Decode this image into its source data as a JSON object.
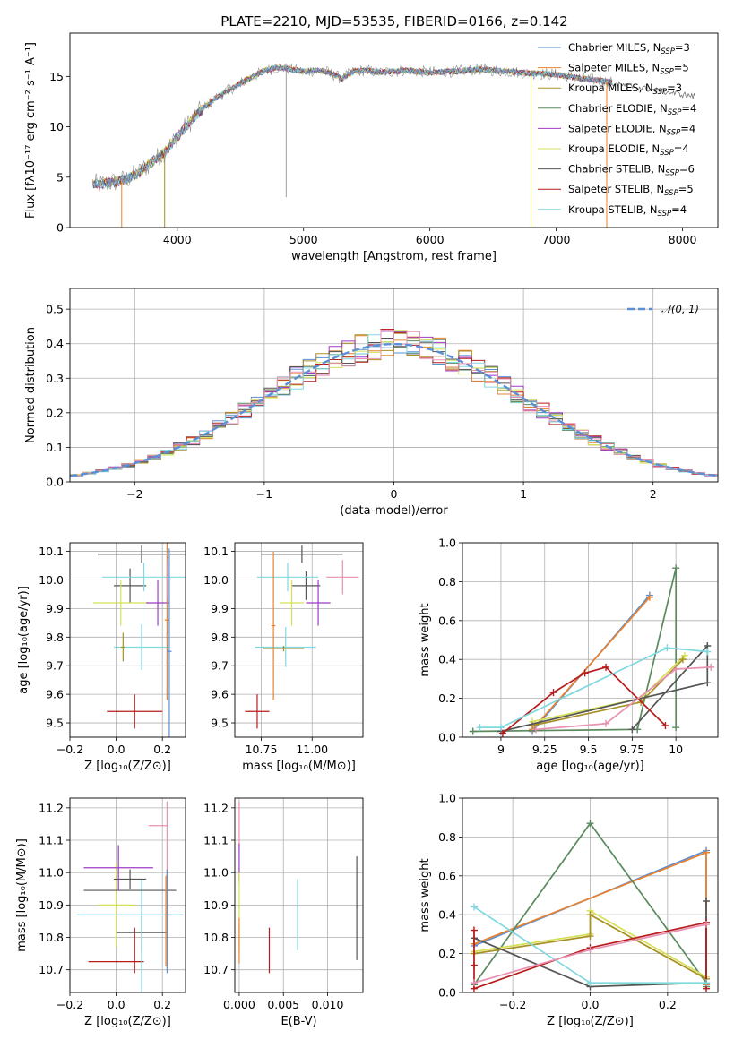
{
  "figure": {
    "title": "PLATE=2210, MJD=53535, FIBERID=0166, z=0.142"
  },
  "colors": {
    "blue": "#5b8fd6",
    "orange": "#e8822f",
    "olive": "#a89025",
    "green": "#5a8a5e",
    "purple": "#9d3bc4",
    "yellow": "#d4e157",
    "darkgray": "#555555",
    "red": "#b71c1c",
    "cyan": "#80d8e0",
    "pink": "#e890b0",
    "gray": "#888888"
  },
  "chart_data": [
    {
      "id": "spectrum",
      "type": "line",
      "xlabel": "wavelength [Angstrom, rest frame]",
      "ylabel": "Flux [fλ10⁻¹⁷ erg cm⁻² s⁻¹ A⁻¹]",
      "xlim": [
        3150,
        8280
      ],
      "ylim": [
        0,
        19.3
      ],
      "xticks": [
        4000,
        5000,
        6000,
        7000,
        8000
      ],
      "yticks": [
        0,
        5,
        10,
        15
      ],
      "grid": false,
      "legend_position": "top-right",
      "legend": [
        {
          "label": "Chabrier MILES, N",
          "sub": "SSP",
          "tail": "=3",
          "color": "#5b8fd6"
        },
        {
          "label": "Salpeter MILES, N",
          "sub": "SSP",
          "tail": "=5",
          "color": "#e8822f"
        },
        {
          "label": "Kroupa MILES, N",
          "sub": "SSP",
          "tail": "=3",
          "color": "#a89025"
        },
        {
          "label": "Chabrier ELODIE, N",
          "sub": "SSP",
          "tail": "=4",
          "color": "#5a8a5e"
        },
        {
          "label": "Salpeter ELODIE, N",
          "sub": "SSP",
          "tail": "=4",
          "color": "#9d3bc4"
        },
        {
          "label": "Kroupa ELODIE, N",
          "sub": "SSP",
          "tail": "=4",
          "color": "#d4e157"
        },
        {
          "label": "Chabrier STELIB, N",
          "sub": "SSP",
          "tail": "=6",
          "color": "#555555"
        },
        {
          "label": "Salpeter STELIB, N",
          "sub": "SSP",
          "tail": "=5",
          "color": "#b71c1c"
        },
        {
          "label": "Kroupa STELIB, N",
          "sub": "SSP",
          "tail": "=4",
          "color": "#80d8e0"
        }
      ],
      "continuum": {
        "wavelength": [
          3330,
          3400,
          3500,
          3600,
          3700,
          3800,
          3900,
          4000,
          4100,
          4200,
          4300,
          4400,
          4500,
          4600,
          4700,
          4800,
          4900,
          5000,
          5100,
          5200,
          5300,
          5400,
          5500,
          5600,
          5700,
          5800,
          5900,
          6000,
          6200,
          6400,
          6600,
          6800,
          7000,
          7200,
          7400
        ],
        "flux": [
          4.3,
          4.3,
          4.5,
          4.8,
          5.5,
          6.5,
          7.5,
          9.0,
          10.5,
          11.8,
          12.8,
          13.6,
          14.3,
          15.0,
          15.6,
          15.9,
          15.7,
          15.5,
          15.6,
          15.4,
          14.8,
          15.5,
          15.6,
          15.4,
          15.5,
          15.6,
          15.5,
          15.4,
          15.5,
          15.7,
          15.5,
          15.3,
          15.2,
          14.8,
          14.5
        ]
      },
      "stelib_continuum": {
        "wavelength": [
          7300,
          7500,
          7700,
          7900,
          8000,
          8100
        ],
        "flux": [
          14.6,
          14.3,
          14.0,
          13.6,
          13.3,
          13.0
        ]
      },
      "vertical_drops": [
        {
          "x": 3560,
          "color": "#e8822f"
        },
        {
          "x": 3900,
          "color": "#a89025"
        },
        {
          "x": 6800,
          "color": "#d4e157"
        },
        {
          "x": 7400,
          "color": "#e8822f"
        }
      ]
    },
    {
      "id": "residual-hist",
      "type": "line",
      "xlabel": "(data-model)/error",
      "ylabel": "Normed distribution",
      "xlim": [
        -2.5,
        2.5
      ],
      "ylim": [
        0,
        0.56
      ],
      "xticks": [
        -2,
        -1,
        0,
        1,
        2
      ],
      "yticks": [
        0.0,
        0.1,
        0.2,
        0.3,
        0.4,
        0.5
      ],
      "grid": true,
      "legend_position": "top-right",
      "legend": [
        {
          "label": "𝒩(0, 1)",
          "color": "#5b8fd6"
        }
      ],
      "bin_edges_start": -2.5,
      "bin_width": 0.1
    },
    {
      "id": "age-vs-Z",
      "type": "scatter",
      "xlabel": "Z [log₁₀(Z/Z⊙)]",
      "ylabel": "age  [log₁₀(age/yr)]",
      "xlim": [
        -0.2,
        0.3
      ],
      "ylim": [
        9.45,
        10.13
      ],
      "xticks": [
        -0.2,
        0.0,
        0.2
      ],
      "xtick_labels": [
        "−0.2",
        "0.0",
        "0.2"
      ],
      "yticks": [
        9.5,
        9.6,
        9.7,
        9.8,
        9.9,
        10.0,
        10.1
      ],
      "grid": true,
      "errorbars": [
        {
          "x": 0.08,
          "y": 9.54,
          "xerr": 0.12,
          "yerr": 0.06,
          "color": "#b71c1c"
        },
        {
          "x": 0.11,
          "y": 9.765,
          "xerr": 0.12,
          "yerr": 0.08,
          "color": "#80d8e0"
        },
        {
          "x": 0.06,
          "y": 9.98,
          "xerr": 0.07,
          "yerr": 0.06,
          "color": "#555555"
        },
        {
          "x": 0.02,
          "y": 9.92,
          "xerr": 0.12,
          "yerr": 0.08,
          "color": "#d4e157"
        },
        {
          "x": 0.18,
          "y": 9.92,
          "xerr": 0.05,
          "yerr": 0.08,
          "color": "#9d3bc4"
        },
        {
          "x": 0.11,
          "y": 10.09,
          "xerr": 0.19,
          "yerr": 0.03,
          "color": "#555555"
        },
        {
          "x": 0.12,
          "y": 10.01,
          "xerr": 0.18,
          "yerr": 0.05,
          "color": "#80d8e0"
        },
        {
          "x": 0.22,
          "y": 9.86,
          "xerr": 0.01,
          "yerr": 0.28,
          "color": "#e8822f"
        },
        {
          "x": 0.23,
          "y": 9.75,
          "xerr": 0.01,
          "yerr": 0.36,
          "color": "#5b8fd6"
        },
        {
          "x": 0.22,
          "y": 10.0,
          "xerr": 0.005,
          "yerr": 0.07,
          "color": "#e890b0"
        },
        {
          "x": 0.03,
          "y": 9.765,
          "xerr": 0.01,
          "yerr": 0.05,
          "color": "#a89025"
        }
      ]
    },
    {
      "id": "age-vs-mass",
      "type": "scatter",
      "xlabel": "mass [log₁₀(M/M⊙)]",
      "xlim": [
        10.62,
        11.25
      ],
      "ylim": [
        9.45,
        10.13
      ],
      "xticks": [
        10.75,
        11.0
      ],
      "xtick_labels": [
        "10.75",
        "11.00"
      ],
      "yticks": [
        9.5,
        9.6,
        9.7,
        9.8,
        9.9,
        10.0,
        10.1
      ],
      "grid": true,
      "errorbars": [
        {
          "x": 10.73,
          "y": 9.54,
          "xerr": 0.06,
          "yerr": 0.06,
          "color": "#b71c1c"
        },
        {
          "x": 10.87,
          "y": 9.765,
          "xerr": 0.15,
          "yerr": 0.07,
          "color": "#80d8e0"
        },
        {
          "x": 10.97,
          "y": 9.98,
          "xerr": 0.07,
          "yerr": 0.05,
          "color": "#555555"
        },
        {
          "x": 10.9,
          "y": 9.92,
          "xerr": 0.06,
          "yerr": 0.08,
          "color": "#d4e157"
        },
        {
          "x": 11.03,
          "y": 9.92,
          "xerr": 0.06,
          "yerr": 0.08,
          "color": "#9d3bc4"
        },
        {
          "x": 10.95,
          "y": 10.09,
          "xerr": 0.2,
          "yerr": 0.03,
          "color": "#555555"
        },
        {
          "x": 10.88,
          "y": 10.01,
          "xerr": 0.15,
          "yerr": 0.05,
          "color": "#80d8e0"
        },
        {
          "x": 10.81,
          "y": 9.84,
          "xerr": 0.01,
          "yerr": 0.26,
          "color": "#e8822f"
        },
        {
          "x": 11.15,
          "y": 10.01,
          "xerr": 0.08,
          "yerr": 0.06,
          "color": "#e890b0"
        },
        {
          "x": 10.86,
          "y": 9.76,
          "xerr": 0.1,
          "yerr": 0.01,
          "color": "#a89025"
        }
      ]
    },
    {
      "id": "weight-vs-age",
      "type": "line",
      "xlabel": "age  [log₁₀(age/yr)]",
      "ylabel": "mass weight",
      "xlim": [
        8.78,
        10.24
      ],
      "ylim": [
        0,
        1.0
      ],
      "xticks": [
        9.0,
        9.25,
        9.5,
        9.75,
        10.0
      ],
      "yticks": [
        0.0,
        0.2,
        0.4,
        0.6,
        0.8,
        1.0
      ],
      "grid": true,
      "series": [
        {
          "color": "#5b8fd6",
          "x": [
            9.18,
            9.85
          ],
          "y": [
            0.03,
            0.73
          ]
        },
        {
          "color": "#e8822f",
          "x": [
            9.18,
            9.85
          ],
          "y": [
            0.04,
            0.72
          ]
        },
        {
          "color": "#5a8a5e",
          "x": [
            8.84,
            9.78,
            10.0,
            10.0
          ],
          "y": [
            0.03,
            0.04,
            0.87,
            0.05
          ]
        },
        {
          "color": "#d4e157",
          "x": [
            9.18,
            9.8,
            10.05
          ],
          "y": [
            0.08,
            0.2,
            0.42
          ]
        },
        {
          "color": "#a89025",
          "x": [
            9.18,
            9.8,
            10.04
          ],
          "y": [
            0.06,
            0.18,
            0.4
          ]
        },
        {
          "color": "#555555",
          "x": [
            9.0,
            10.18,
            10.18,
            9.75
          ],
          "y": [
            0.03,
            0.28,
            0.47,
            0.04
          ]
        },
        {
          "color": "#b71c1c",
          "x": [
            9.01,
            9.3,
            9.48,
            9.6,
            9.94
          ],
          "y": [
            0.02,
            0.23,
            0.33,
            0.36,
            0.06
          ]
        },
        {
          "color": "#80d8e0",
          "x": [
            8.88,
            9.0,
            9.95,
            10.18
          ],
          "y": [
            0.05,
            0.05,
            0.46,
            0.44
          ]
        },
        {
          "color": "#e890b0",
          "x": [
            9.2,
            9.6,
            10.0,
            10.2
          ],
          "y": [
            0.04,
            0.07,
            0.35,
            0.36
          ]
        }
      ]
    },
    {
      "id": "mass-vs-Z",
      "type": "scatter",
      "xlabel": "Z [log₁₀(Z/Z⊙)]",
      "ylabel": "mass [log₁₀(M/M⊙)]",
      "xlim": [
        -0.2,
        0.3
      ],
      "ylim": [
        10.63,
        11.23
      ],
      "xticks": [
        -0.2,
        0.0,
        0.2
      ],
      "xtick_labels": [
        "−0.2",
        "0.0",
        "0.2"
      ],
      "yticks": [
        10.7,
        10.8,
        10.9,
        11.0,
        11.1,
        11.2
      ],
      "grid": true,
      "errorbars": [
        {
          "x": 0.0,
          "y": 10.725,
          "xerr": 0.12,
          "yerr": 0.0,
          "color": "#b71c1c"
        },
        {
          "x": 0.08,
          "y": 10.76,
          "xerr": 0.0,
          "yerr": 0.07,
          "color": "#b71c1c"
        },
        {
          "x": 0.11,
          "y": 10.815,
          "xerr": 0.11,
          "yerr": 0.0,
          "color": "#555555"
        },
        {
          "x": 0.11,
          "y": 10.815,
          "xerr": 0.0,
          "yerr": 0.06,
          "color": "#a89025"
        },
        {
          "x": 0.06,
          "y": 10.87,
          "xerr": 0.23,
          "yerr": 0.0,
          "color": "#80d8e0"
        },
        {
          "x": 0.11,
          "y": 10.8,
          "xerr": 0.0,
          "yerr": 0.18,
          "color": "#80d8e0"
        },
        {
          "x": 0.0,
          "y": 10.9,
          "xerr": 0.08,
          "yerr": 0.13,
          "color": "#d4e157"
        },
        {
          "x": 0.06,
          "y": 10.945,
          "xerr": 0.2,
          "yerr": 0.0,
          "color": "#555555"
        },
        {
          "x": 0.06,
          "y": 10.98,
          "xerr": 0.07,
          "yerr": 0.03,
          "color": "#555555"
        },
        {
          "x": 0.01,
          "y": 11.015,
          "xerr": 0.15,
          "yerr": 0.07,
          "color": "#9d3bc4"
        },
        {
          "x": 0.18,
          "y": 11.145,
          "xerr": 0.04,
          "yerr": 0.0,
          "color": "#e890b0"
        },
        {
          "x": 0.22,
          "y": 11.08,
          "xerr": 0.0,
          "yerr": 0.14,
          "color": "#e890b0"
        },
        {
          "x": 0.22,
          "y": 10.85,
          "xerr": 0.0,
          "yerr": 0.16,
          "color": "#5b8fd6"
        },
        {
          "x": 0.215,
          "y": 10.85,
          "xerr": 0.0,
          "yerr": 0.14,
          "color": "#e8822f"
        }
      ]
    },
    {
      "id": "mass-vs-EBV",
      "type": "scatter",
      "xlabel": "E(B-V)",
      "xlim": [
        -0.0005,
        0.014
      ],
      "ylim": [
        10.63,
        11.23
      ],
      "xticks": [
        0.0,
        0.005,
        0.01
      ],
      "xtick_labels": [
        "0.000",
        "0.005",
        "0.010"
      ],
      "yticks": [
        10.7,
        10.8,
        10.9,
        11.0,
        11.1,
        11.2
      ],
      "grid": true,
      "errorbars": [
        {
          "x": 0.0,
          "y": 11.15,
          "xerr": 0.0,
          "yerr": 0.07,
          "color": "#e890b0"
        },
        {
          "x": 0.0,
          "y": 11.03,
          "xerr": 0.0,
          "yerr": 0.06,
          "color": "#9d3bc4"
        },
        {
          "x": 0.0,
          "y": 10.88,
          "xerr": 0.0,
          "yerr": 0.12,
          "color": "#d4e157"
        },
        {
          "x": 0.0,
          "y": 10.79,
          "xerr": 0.0,
          "yerr": 0.07,
          "color": "#e8822f"
        },
        {
          "x": 0.0034,
          "y": 10.76,
          "xerr": 0.0,
          "yerr": 0.07,
          "color": "#b71c1c"
        },
        {
          "x": 0.0066,
          "y": 10.87,
          "xerr": 0.0,
          "yerr": 0.11,
          "color": "#80d8e0"
        },
        {
          "x": 0.0133,
          "y": 10.89,
          "xerr": 0.0,
          "yerr": 0.16,
          "color": "#555555"
        }
      ]
    },
    {
      "id": "weight-vs-Z",
      "type": "line",
      "xlabel": "Z [log₁₀(Z/Z⊙)]",
      "ylabel": "mass weight",
      "xlim": [
        -0.33,
        0.33
      ],
      "ylim": [
        0,
        1.0
      ],
      "xticks": [
        -0.2,
        0.0,
        0.2
      ],
      "xtick_labels": [
        "−0.2",
        "0.0",
        "0.2"
      ],
      "yticks": [
        0.0,
        0.2,
        0.4,
        0.6,
        0.8,
        1.0
      ],
      "grid": true,
      "series": [
        {
          "color": "#5b8fd6",
          "x": [
            -0.3,
            0.3,
            0.3
          ],
          "y": [
            0.24,
            0.73,
            0.05
          ]
        },
        {
          "color": "#e8822f",
          "x": [
            -0.3,
            0.3,
            0.3
          ],
          "y": [
            0.25,
            0.72,
            0.04
          ]
        },
        {
          "color": "#5a8a5e",
          "x": [
            -0.3,
            0.0,
            0.3,
            0.3
          ],
          "y": [
            0.04,
            0.87,
            0.05,
            0.03
          ]
        },
        {
          "color": "#d4e157",
          "x": [
            -0.3,
            0.0,
            0.0,
            0.3
          ],
          "y": [
            0.21,
            0.3,
            0.42,
            0.08
          ]
        },
        {
          "color": "#a89025",
          "x": [
            -0.3,
            0.0,
            0.0,
            0.3
          ],
          "y": [
            0.2,
            0.29,
            0.4,
            0.07
          ]
        },
        {
          "color": "#555555",
          "x": [
            -0.3,
            0.0,
            0.3,
            0.3
          ],
          "y": [
            0.28,
            0.03,
            0.05,
            0.47
          ]
        },
        {
          "color": "#b71c1c",
          "x": [
            -0.3,
            -0.3,
            -0.3,
            0.0,
            0.3,
            0.3
          ],
          "y": [
            0.32,
            0.14,
            0.02,
            0.23,
            0.36,
            0.02
          ]
        },
        {
          "color": "#80d8e0",
          "x": [
            -0.3,
            0.0,
            0.3
          ],
          "y": [
            0.44,
            0.05,
            0.05
          ]
        },
        {
          "color": "#e890b0",
          "x": [
            -0.3,
            0.0,
            0.3
          ],
          "y": [
            0.05,
            0.22,
            0.35
          ]
        }
      ]
    }
  ]
}
